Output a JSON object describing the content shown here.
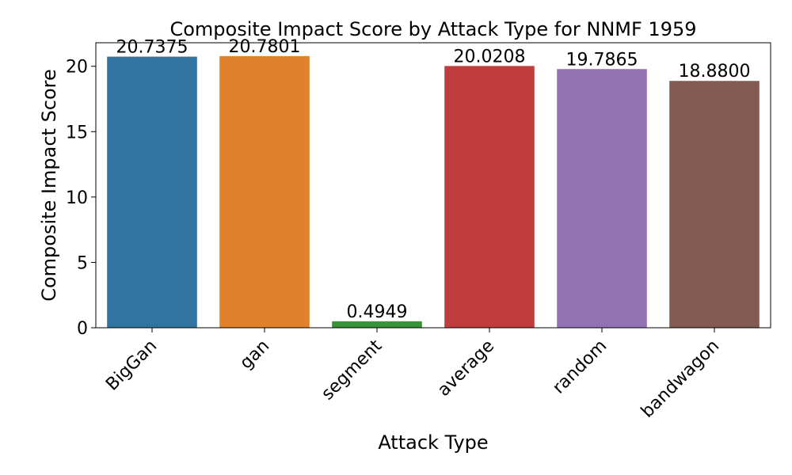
{
  "chart_data": {
    "type": "bar",
    "title": "Composite Impact Score by Attack Type for NNMF 1959",
    "xlabel": "Attack Type",
    "ylabel": "Composite Impact Score",
    "categories": [
      "BigGan",
      "gan",
      "segment",
      "average",
      "random",
      "bandwagon"
    ],
    "values": [
      20.7375,
      20.7801,
      0.4949,
      20.0208,
      19.7865,
      18.88
    ],
    "value_labels": [
      "20.7375",
      "20.7801",
      "0.4949",
      "20.0208",
      "19.7865",
      "18.8800"
    ],
    "colors": [
      "#3274a1",
      "#e1812c",
      "#3a923a",
      "#c03d3e",
      "#9372b2",
      "#845b53"
    ],
    "yticks": [
      0,
      5,
      10,
      15,
      20
    ],
    "ylim": [
      0,
      21.8
    ],
    "grid": false,
    "legend": "none"
  }
}
